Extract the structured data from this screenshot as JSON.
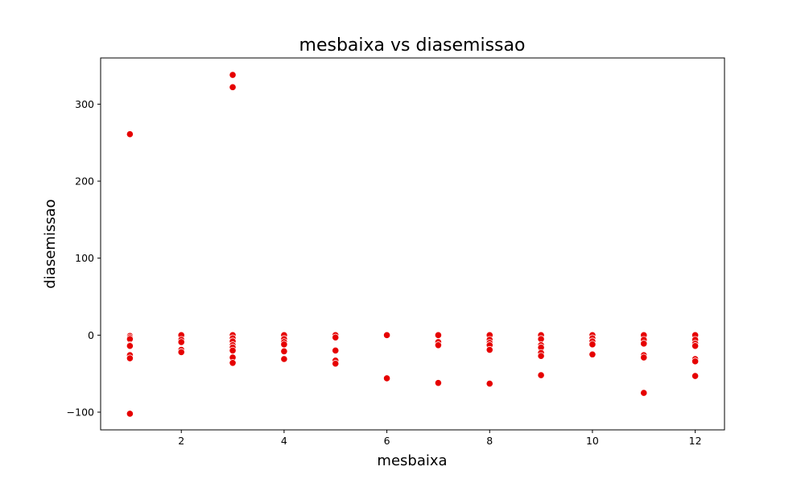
{
  "chart_data": {
    "type": "scatter",
    "title": "mesbaixa vs diasemissao",
    "xlabel": "mesbaixa",
    "ylabel": "diasemissao",
    "xlim": [
      0.43,
      12.57
    ],
    "ylim": [
      -123,
      360
    ],
    "xticks": [
      2,
      4,
      6,
      8,
      10,
      12
    ],
    "yticks": [
      -100,
      0,
      100,
      200,
      300
    ],
    "grid": false,
    "marker_color": "#e60000",
    "marker_edge_color": "#ffffff",
    "points": [
      {
        "x": 1,
        "y": 261
      },
      {
        "x": 1,
        "y": -1
      },
      {
        "x": 1,
        "y": -3
      },
      {
        "x": 1,
        "y": -5
      },
      {
        "x": 1,
        "y": -13
      },
      {
        "x": 1,
        "y": -14
      },
      {
        "x": 1,
        "y": -26
      },
      {
        "x": 1,
        "y": -30
      },
      {
        "x": 1,
        "y": -102
      },
      {
        "x": 2,
        "y": 0
      },
      {
        "x": 2,
        "y": -6
      },
      {
        "x": 2,
        "y": -9
      },
      {
        "x": 2,
        "y": -19
      },
      {
        "x": 2,
        "y": -22
      },
      {
        "x": 3,
        "y": 338
      },
      {
        "x": 3,
        "y": 322
      },
      {
        "x": 3,
        "y": 0
      },
      {
        "x": 3,
        "y": -4
      },
      {
        "x": 3,
        "y": -8
      },
      {
        "x": 3,
        "y": -13
      },
      {
        "x": 3,
        "y": -16
      },
      {
        "x": 3,
        "y": -20
      },
      {
        "x": 3,
        "y": -29
      },
      {
        "x": 3,
        "y": -36
      },
      {
        "x": 4,
        "y": 0
      },
      {
        "x": 4,
        "y": -5
      },
      {
        "x": 4,
        "y": -9
      },
      {
        "x": 4,
        "y": -12
      },
      {
        "x": 4,
        "y": -21
      },
      {
        "x": 4,
        "y": -31
      },
      {
        "x": 5,
        "y": 0
      },
      {
        "x": 5,
        "y": -3
      },
      {
        "x": 5,
        "y": -20
      },
      {
        "x": 5,
        "y": -33
      },
      {
        "x": 5,
        "y": -37
      },
      {
        "x": 6,
        "y": 0
      },
      {
        "x": 6,
        "y": -56
      },
      {
        "x": 7,
        "y": 0
      },
      {
        "x": 7,
        "y": -9
      },
      {
        "x": 7,
        "y": -13
      },
      {
        "x": 7,
        "y": -62
      },
      {
        "x": 8,
        "y": 0
      },
      {
        "x": 8,
        "y": -6
      },
      {
        "x": 8,
        "y": -10
      },
      {
        "x": 8,
        "y": -13
      },
      {
        "x": 8,
        "y": -19
      },
      {
        "x": 8,
        "y": -63
      },
      {
        "x": 9,
        "y": 0
      },
      {
        "x": 9,
        "y": -5
      },
      {
        "x": 9,
        "y": -13
      },
      {
        "x": 9,
        "y": -16
      },
      {
        "x": 9,
        "y": -23
      },
      {
        "x": 9,
        "y": -27
      },
      {
        "x": 9,
        "y": -52
      },
      {
        "x": 10,
        "y": 0
      },
      {
        "x": 10,
        "y": -4
      },
      {
        "x": 10,
        "y": -8
      },
      {
        "x": 10,
        "y": -12
      },
      {
        "x": 10,
        "y": -25
      },
      {
        "x": 11,
        "y": 0
      },
      {
        "x": 11,
        "y": -6
      },
      {
        "x": 11,
        "y": -11
      },
      {
        "x": 11,
        "y": -26
      },
      {
        "x": 11,
        "y": -29
      },
      {
        "x": 11,
        "y": -75
      },
      {
        "x": 12,
        "y": 0
      },
      {
        "x": 12,
        "y": -6
      },
      {
        "x": 12,
        "y": -11
      },
      {
        "x": 12,
        "y": -14
      },
      {
        "x": 12,
        "y": -31
      },
      {
        "x": 12,
        "y": -34
      },
      {
        "x": 12,
        "y": -53
      }
    ]
  }
}
